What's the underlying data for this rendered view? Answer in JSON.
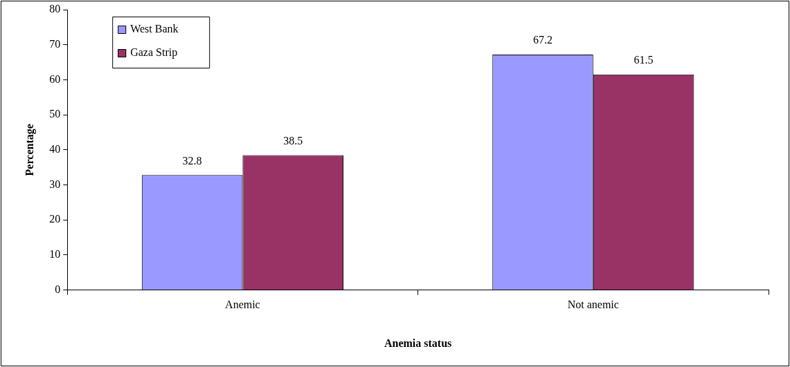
{
  "chart_data": {
    "type": "bar",
    "xlabel": "Anemia status",
    "ylabel": "Percentage",
    "categories": [
      "Anemic",
      "Not anemic"
    ],
    "series": [
      {
        "name": "West Bank",
        "color": "#9999ff",
        "values": [
          32.8,
          67.2
        ]
      },
      {
        "name": "Gaza Strip",
        "color": "#993366",
        "values": [
          38.5,
          61.5
        ]
      }
    ],
    "ylim": [
      0,
      80
    ],
    "yticks": [
      0,
      10,
      20,
      30,
      40,
      50,
      60,
      70,
      80
    ],
    "grid": false,
    "legend": "top left",
    "data_labels": true
  }
}
